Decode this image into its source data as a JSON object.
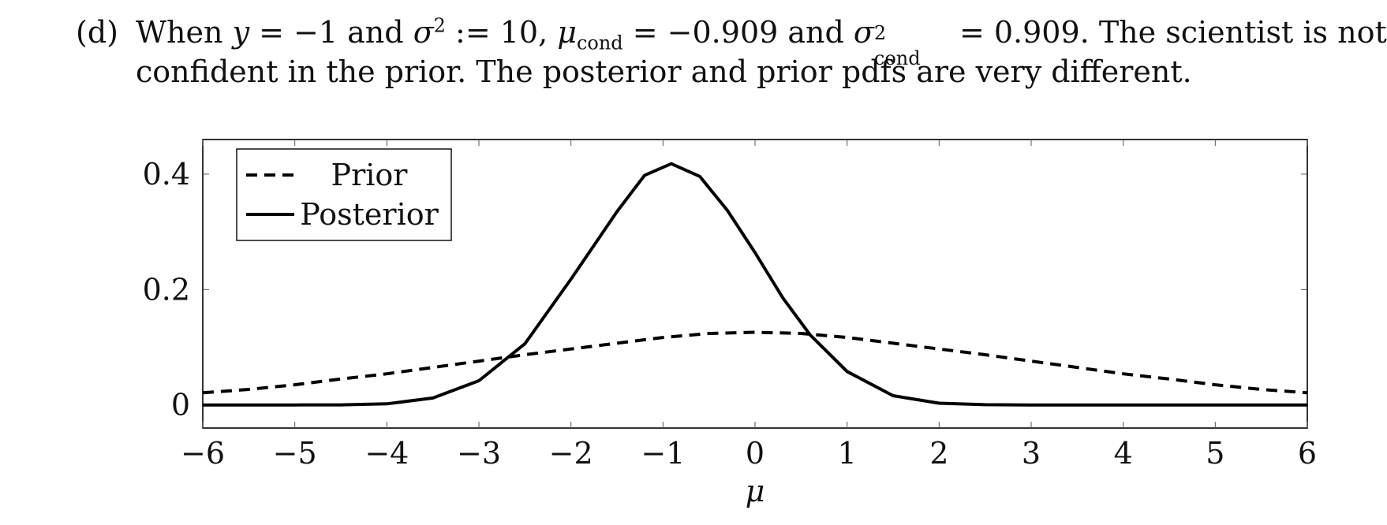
{
  "text": {
    "item_label": "(d)",
    "l1_when": "When",
    "l1_y": "y",
    "l1_eq1": " = −1 and ",
    "l1_sigma": "σ",
    "l1_sq": "2",
    "l1_assign": " := 10, ",
    "l1_mu": "μ",
    "l1_cond": "cond",
    "l1_eq2": " = −0.909 and ",
    "l1_sigma2": "σ",
    "l1_sq2": "2",
    "l1_cond2": "cond",
    "l1_eq3": " = 0.909. The scientist is not",
    "line2": "confident in the prior. The posterior and prior pdfs are very different."
  },
  "chart_data": {
    "type": "line",
    "xlabel": "μ",
    "ylabel": "",
    "xlim": [
      -6,
      6
    ],
    "ylim": [
      -0.04,
      0.46
    ],
    "xticks": [
      -6,
      -5,
      -4,
      -3,
      -2,
      -1,
      0,
      1,
      2,
      3,
      4,
      5,
      6
    ],
    "xtick_labels": [
      "−6",
      "−5",
      "−4",
      "−3",
      "−2",
      "−1",
      "0",
      "1",
      "2",
      "3",
      "4",
      "5",
      "6"
    ],
    "yticks": [
      0,
      0.2,
      0.4
    ],
    "ytick_labels": [
      "0",
      "0.2",
      "0.4"
    ],
    "grid": false,
    "legend_position": "top-left",
    "series": [
      {
        "name": "Prior",
        "style": "dashed",
        "color": "#000000",
        "x": [
          -6,
          -5.5,
          -5,
          -4.5,
          -4,
          -3.5,
          -3,
          -2.5,
          -2,
          -1.5,
          -1,
          -0.5,
          0,
          0.5,
          1,
          1.5,
          2,
          2.5,
          3,
          3.5,
          4,
          4.5,
          5,
          5.5,
          6
        ],
        "y": [
          0.021,
          0.027,
          0.035,
          0.045,
          0.054,
          0.065,
          0.076,
          0.087,
          0.097,
          0.107,
          0.117,
          0.124,
          0.126,
          0.124,
          0.117,
          0.107,
          0.097,
          0.087,
          0.076,
          0.065,
          0.054,
          0.045,
          0.035,
          0.027,
          0.021
        ]
      },
      {
        "name": "Posterior",
        "style": "solid",
        "color": "#000000",
        "x": [
          -6,
          -5.5,
          -5,
          -4.5,
          -4.0,
          -3.5,
          -3.0,
          -2.5,
          -2.0,
          -1.5,
          -1.2,
          -0.91,
          -0.6,
          -0.3,
          0.0,
          0.3,
          0.6,
          1.0,
          1.5,
          2.0,
          2.5,
          3.0,
          3.5,
          4.0,
          5.0,
          6.0
        ],
        "y": [
          0.0,
          0.0,
          0.0,
          0.0002,
          0.002,
          0.012,
          0.042,
          0.106,
          0.218,
          0.335,
          0.398,
          0.418,
          0.396,
          0.337,
          0.264,
          0.186,
          0.121,
          0.058,
          0.016,
          0.003,
          0.0004,
          0.0,
          0.0,
          0.0,
          0.0,
          0.0
        ]
      }
    ]
  }
}
